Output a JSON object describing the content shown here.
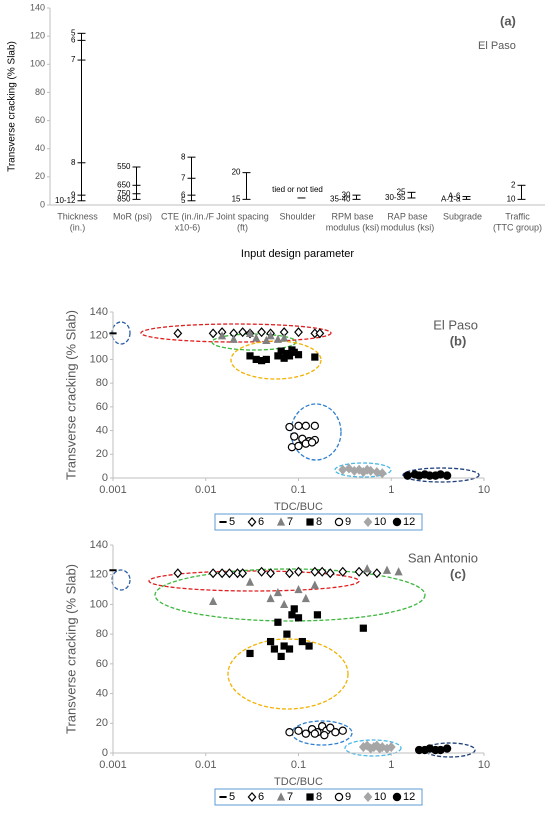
{
  "chart_data": [
    {
      "type": "range",
      "ylabel": "Transverse cracking (% Slab)",
      "xlabel": "Input design parameter",
      "panel_label": "(a)",
      "location": "El Paso",
      "ylim": [
        0,
        140
      ],
      "yticks": [
        0,
        20,
        40,
        60,
        80,
        100,
        120,
        140
      ],
      "color": "#000000",
      "categories": [
        [
          "Thickness",
          "(in.)"
        ],
        [
          "MoR (psi)"
        ],
        [
          "CTE (in./in./F",
          "x10-6)"
        ],
        [
          "Joint spacing",
          "(ft)"
        ],
        [
          "Shoulder"
        ],
        [
          "RPM base",
          "modulus (ksi)"
        ],
        [
          "RAP base",
          "modulus (ksi)"
        ],
        [
          "Subgrade"
        ],
        [
          "Traffic",
          "(TTC group)"
        ]
      ],
      "levels": [
        [
          {
            "label": "5",
            "value": 122
          },
          {
            "label": "6",
            "value": 117
          },
          {
            "label": "7",
            "value": 103
          },
          {
            "label": "8",
            "value": 30
          },
          {
            "label": "9",
            "value": 7
          },
          {
            "label": "10-12",
            "value": 3
          }
        ],
        [
          {
            "label": "550",
            "value": 27
          },
          {
            "label": "650",
            "value": 14
          },
          {
            "label": "750",
            "value": 8
          },
          {
            "label": "850",
            "value": 4
          }
        ],
        [
          {
            "label": "8",
            "value": 34
          },
          {
            "label": "7",
            "value": 19
          },
          {
            "label": "6",
            "value": 7
          },
          {
            "label": "5",
            "value": 3
          }
        ],
        [
          {
            "label": "20",
            "value": 23
          },
          {
            "label": "15",
            "value": 4
          }
        ],
        [
          {
            "label": "tied or not tied",
            "value": 5
          }
        ],
        [
          {
            "label": "30",
            "value": 7
          },
          {
            "label": "35-40",
            "value": 4
          }
        ],
        [
          {
            "label": "25",
            "value": 9
          },
          {
            "label": "30-35",
            "value": 5
          }
        ],
        [
          {
            "label": "A-6",
            "value": 6
          },
          {
            "label": "A-1-a",
            "value": 4
          }
        ],
        [
          {
            "label": "2",
            "value": 14
          },
          {
            "label": "10",
            "value": 4
          }
        ]
      ]
    },
    {
      "type": "scatter",
      "ylabel": "Transverse cracking (% Slab)",
      "xlabel": "TDC/BUC",
      "panel_label": "(b)",
      "location": "El Paso",
      "log_x": true,
      "xlim": [
        0.001,
        10
      ],
      "xticks": [
        0.001,
        0.01,
        0.1,
        1,
        10
      ],
      "ylim": [
        0,
        140
      ],
      "yticks": [
        0,
        20,
        40,
        60,
        80,
        100,
        120,
        140
      ],
      "series": [
        {
          "name": "5",
          "marker": "dash",
          "color": "#000000",
          "x": [
            0.001
          ],
          "values": [
            122
          ]
        },
        {
          "name": "6",
          "marker": "diamond-open",
          "color": "#000000",
          "x": [
            0.005,
            0.012,
            0.015,
            0.02,
            0.025,
            0.03,
            0.04,
            0.05,
            0.07,
            0.1,
            0.15,
            0.17
          ],
          "values": [
            122,
            122,
            123,
            122,
            123,
            122,
            123,
            122,
            123,
            123,
            122,
            122
          ]
        },
        {
          "name": "7",
          "marker": "triangle",
          "color": "#808080",
          "x": [
            0.015,
            0.02,
            0.03,
            0.035,
            0.045,
            0.05,
            0.06,
            0.07
          ],
          "values": [
            120,
            117,
            122,
            118,
            116,
            120,
            117,
            118
          ]
        },
        {
          "name": "8",
          "marker": "square",
          "color": "#000000",
          "x": [
            0.03,
            0.035,
            0.04,
            0.045,
            0.06,
            0.065,
            0.07,
            0.075,
            0.08,
            0.085,
            0.09,
            0.1,
            0.15
          ],
          "values": [
            103,
            100,
            99,
            100,
            103,
            107,
            101,
            105,
            103,
            108,
            106,
            104,
            102
          ]
        },
        {
          "name": "9",
          "marker": "circle-open",
          "color": "#000000",
          "x": [
            0.08,
            0.1,
            0.12,
            0.15,
            0.09,
            0.11,
            0.13,
            0.15,
            0.085,
            0.1,
            0.12,
            0.14
          ],
          "values": [
            43,
            44,
            44,
            44,
            35,
            33,
            31,
            32,
            26,
            27,
            29,
            30
          ]
        },
        {
          "name": "10",
          "marker": "diamond",
          "color": "#a6a6a6",
          "x": [
            0.3,
            0.35,
            0.4,
            0.45,
            0.5,
            0.55,
            0.6,
            0.7,
            0.8
          ],
          "values": [
            7,
            8,
            6,
            7,
            5,
            7,
            6,
            5,
            4
          ]
        },
        {
          "name": "12",
          "marker": "circle",
          "color": "#000000",
          "x": [
            1.5,
            1.8,
            2,
            2.3,
            2.6,
            3,
            3.4,
            4
          ],
          "values": [
            2,
            3,
            2,
            3,
            2,
            2,
            3,
            2
          ]
        }
      ]
    },
    {
      "type": "scatter",
      "ylabel": "Transverse cracking (% Slab)",
      "xlabel": "TDC/BUC",
      "panel_label": "(c)",
      "location": "San Antonio",
      "log_x": true,
      "xlim": [
        0.001,
        10
      ],
      "xticks": [
        0.001,
        0.01,
        0.1,
        1,
        10
      ],
      "ylim": [
        0,
        140
      ],
      "yticks": [
        0,
        20,
        40,
        60,
        80,
        100,
        120,
        140
      ],
      "series": [
        {
          "name": "5",
          "marker": "dash",
          "color": "#000000",
          "x": [
            0.001
          ],
          "values": [
            123
          ]
        },
        {
          "name": "6",
          "marker": "diamond-open",
          "color": "#000000",
          "x": [
            0.005,
            0.012,
            0.015,
            0.018,
            0.022,
            0.025,
            0.04,
            0.05,
            0.08,
            0.1,
            0.15,
            0.18,
            0.22,
            0.3,
            0.45,
            0.55,
            0.7
          ],
          "values": [
            121,
            121,
            121,
            121,
            121,
            121,
            122,
            121,
            121,
            122,
            122,
            122,
            121,
            122,
            122,
            122,
            121
          ]
        },
        {
          "name": "7",
          "marker": "triangle",
          "color": "#808080",
          "x": [
            0.012,
            0.03,
            0.05,
            0.06,
            0.07,
            0.1,
            0.12,
            0.15,
            0.55,
            0.9,
            1.2
          ],
          "values": [
            102,
            115,
            104,
            108,
            100,
            110,
            104,
            113,
            124,
            123,
            122
          ]
        },
        {
          "name": "8",
          "marker": "square",
          "color": "#000000",
          "x": [
            0.03,
            0.05,
            0.055,
            0.06,
            0.065,
            0.07,
            0.075,
            0.08,
            0.085,
            0.09,
            0.1,
            0.11,
            0.13,
            0.16,
            0.5
          ],
          "values": [
            67,
            75,
            70,
            88,
            65,
            72,
            80,
            70,
            93,
            97,
            91,
            75,
            72,
            93,
            84
          ]
        },
        {
          "name": "9",
          "marker": "circle-open",
          "color": "#000000",
          "x": [
            0.08,
            0.1,
            0.12,
            0.14,
            0.16,
            0.18,
            0.2,
            0.22,
            0.25,
            0.15,
            0.19,
            0.3
          ],
          "values": [
            14,
            15,
            13,
            16,
            14,
            18,
            15,
            17,
            14,
            13,
            12,
            15
          ]
        },
        {
          "name": "10",
          "marker": "diamond",
          "color": "#a6a6a6",
          "x": [
            0.5,
            0.55,
            0.6,
            0.65,
            0.7,
            0.75,
            0.8,
            0.9,
            1
          ],
          "values": [
            4,
            5,
            3,
            4,
            5,
            3,
            4,
            3,
            4
          ]
        },
        {
          "name": "12",
          "marker": "circle",
          "color": "#000000",
          "x": [
            2,
            2.3,
            2.6,
            3,
            3.4,
            4
          ],
          "values": [
            2,
            2,
            3,
            2,
            2,
            3
          ]
        }
      ]
    }
  ]
}
